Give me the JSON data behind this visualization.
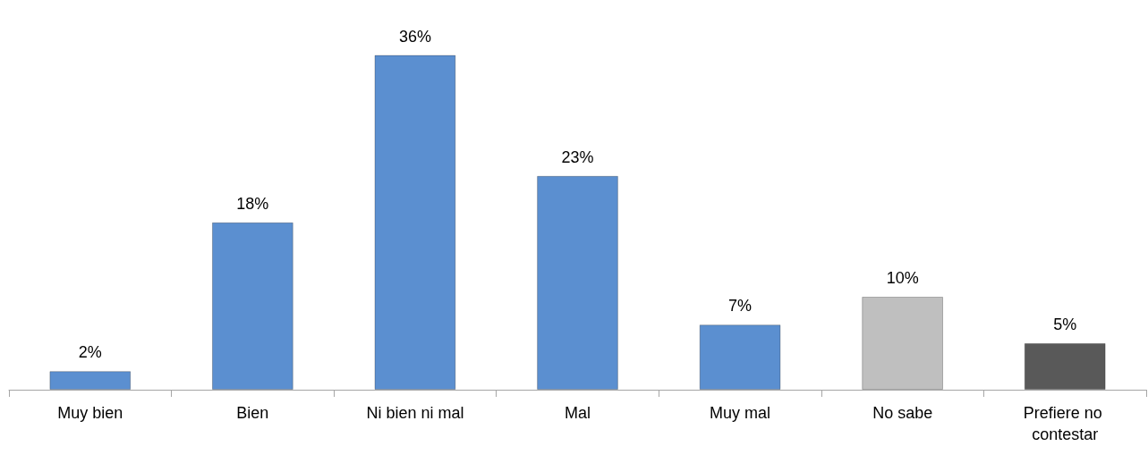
{
  "chart_data": {
    "type": "bar",
    "categories": [
      "Muy bien",
      "Bien",
      "Ni bien ni mal",
      "Mal",
      "Muy mal",
      "No sabe",
      "Prefiere no contestar"
    ],
    "values": [
      2,
      18,
      36,
      23,
      7,
      10,
      5
    ],
    "colors": [
      "#5b8fd0",
      "#5b8fd0",
      "#5b8fd0",
      "#5b8fd0",
      "#5b8fd0",
      "#bfbfbf",
      "#595959"
    ],
    "value_labels": [
      "2%",
      "18%",
      "36%",
      "23%",
      "7%",
      "10%",
      "5%"
    ],
    "grid": false
  }
}
